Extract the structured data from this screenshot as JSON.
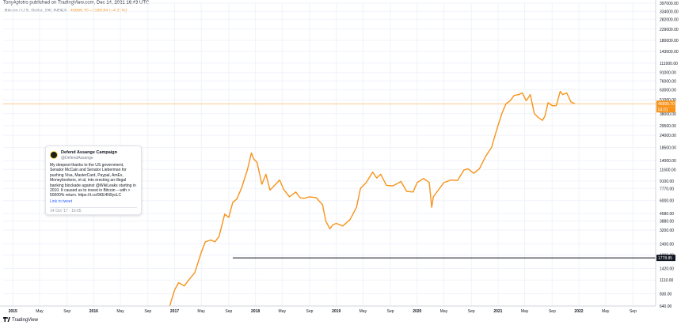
{
  "header": {
    "publisher_line": "TonyAplotro published on TradingView.com, Dec 14, 2021 16:43 UTC",
    "symbol": "Bitcoin / U.S. Dollar, 1W, INDEX",
    "ohlc_text": "46899.70 −2189.84 (−4.21%)"
  },
  "tweet": {
    "name": "Defend Assange Campaign",
    "handle": "@DefendAssange",
    "text": "My deepest thanks to the US government, Senator McCain and Senator Lieberman for pushing Visa, MasterCard, Paypal, AmEx, Moneybookers, et al, into erecting an illegal banking blockade against @WikiLeaks starting in 2010. It caused us to invest in Bitcoin – with > 50000% return. https://t.co/9KE4N9ysLC",
    "link_label": "Link to tweet",
    "date": "14 Oct '17 · 16:05"
  },
  "footer": {
    "logo_text": "TradingView"
  },
  "colors": {
    "series": "#f7931a",
    "level_line": "#131722",
    "grid": "#f0f3fa",
    "axis_text": "#131722",
    "price_tag_bg": "#f7931a",
    "level_tag_bg": "#131722"
  },
  "chart_data": {
    "type": "line",
    "scale": "log",
    "grid": true,
    "ylim": [
      640,
      397000
    ],
    "y_ticks": [
      640,
      830,
      1110,
      1420,
      1890,
      2400,
      3200,
      3880,
      4580,
      6000,
      7770,
      9100,
      11600,
      14000,
      18500,
      24000,
      29500,
      38000,
      51000,
      63000,
      76000,
      91000,
      111000,
      143000,
      180000,
      229000,
      282000,
      334000,
      397000
    ],
    "y_tick_labels": [
      "640.00",
      "830.00",
      "1110.00",
      "1420.00",
      "1890.00",
      "2400.00",
      "3200.00",
      "3880.00",
      "4580.00",
      "6000.00",
      "7770.00",
      "9100.00",
      "11600.00",
      "14000.00",
      "18500.00",
      "24000.00",
      "29500.00",
      "38000.00",
      "51000.00",
      "63000.00",
      "76000.00",
      "91000.00",
      "111000.00",
      "143000.00",
      "180000.00",
      "229000.00",
      "282000.00",
      "334000.00",
      "397000.00"
    ],
    "x_labels": [
      {
        "t": 2015.0,
        "label": "2015"
      },
      {
        "t": 2015.33,
        "label": "May"
      },
      {
        "t": 2015.67,
        "label": "Sep"
      },
      {
        "t": 2016.0,
        "label": "2016"
      },
      {
        "t": 2016.33,
        "label": "May"
      },
      {
        "t": 2016.67,
        "label": "Sep"
      },
      {
        "t": 2017.0,
        "label": "2017"
      },
      {
        "t": 2017.33,
        "label": "May"
      },
      {
        "t": 2017.67,
        "label": "Sep"
      },
      {
        "t": 2018.0,
        "label": "2018"
      },
      {
        "t": 2018.33,
        "label": "May"
      },
      {
        "t": 2018.67,
        "label": "Sep"
      },
      {
        "t": 2019.0,
        "label": "2019"
      },
      {
        "t": 2019.33,
        "label": "May"
      },
      {
        "t": 2019.67,
        "label": "Sep"
      },
      {
        "t": 2020.0,
        "label": "2020"
      },
      {
        "t": 2020.33,
        "label": "May"
      },
      {
        "t": 2020.67,
        "label": "Sep"
      },
      {
        "t": 2021.0,
        "label": "2021"
      },
      {
        "t": 2021.33,
        "label": "May"
      },
      {
        "t": 2021.67,
        "label": "Sep"
      },
      {
        "t": 2022.0,
        "label": "2022"
      },
      {
        "t": 2022.33,
        "label": "May"
      },
      {
        "t": 2022.67,
        "label": "Sep"
      }
    ],
    "series": [
      {
        "x": [
          2016.94,
          2017.0,
          2017.05,
          2017.12,
          2017.17,
          2017.25,
          2017.33,
          2017.38,
          2017.45,
          2017.5,
          2017.55,
          2017.62,
          2017.67,
          2017.72,
          2017.77,
          2017.83,
          2017.9,
          2017.95,
          2017.98,
          2018.02,
          2018.08,
          2018.13,
          2018.18,
          2018.25,
          2018.3,
          2018.35,
          2018.42,
          2018.5,
          2018.55,
          2018.6,
          2018.67,
          2018.75,
          2018.83,
          2018.87,
          2018.92,
          2018.96,
          2019.0,
          2019.08,
          2019.17,
          2019.25,
          2019.3,
          2019.37,
          2019.45,
          2019.5,
          2019.55,
          2019.62,
          2019.7,
          2019.8,
          2019.87,
          2019.95,
          2020.0,
          2020.08,
          2020.15,
          2020.18,
          2020.2,
          2020.25,
          2020.33,
          2020.42,
          2020.5,
          2020.58,
          2020.63,
          2020.7,
          2020.77,
          2020.85,
          2020.92,
          2020.96,
          2021.0,
          2021.05,
          2021.1,
          2021.15,
          2021.2,
          2021.26,
          2021.3,
          2021.35,
          2021.4,
          2021.45,
          2021.5,
          2021.55,
          2021.58,
          2021.62,
          2021.67,
          2021.72,
          2021.77,
          2021.8,
          2021.85,
          2021.9,
          2021.95
        ],
        "y": [
          640,
          900,
          1050,
          980,
          1100,
          1300,
          2000,
          2500,
          2600,
          2500,
          2800,
          4500,
          4200,
          5800,
          6200,
          7900,
          11500,
          16500,
          14500,
          13500,
          8500,
          10500,
          7500,
          8500,
          9300,
          7600,
          6500,
          7200,
          6400,
          6300,
          6500,
          6400,
          5500,
          3900,
          3300,
          3600,
          3700,
          3500,
          4000,
          5200,
          7800,
          8800,
          11000,
          9700,
          10500,
          8300,
          8200,
          9000,
          7300,
          7200,
          8800,
          9600,
          8800,
          5200,
          6500,
          7300,
          8800,
          9300,
          9200,
          11500,
          11800,
          10700,
          11800,
          15500,
          18500,
          23500,
          29500,
          38500,
          47000,
          50000,
          56000,
          57000,
          59000,
          50000,
          57000,
          38000,
          35000,
          33000,
          36000,
          48000,
          45000,
          45000,
          61000,
          57000,
          59000,
          49000,
          46900
        ]
      }
    ],
    "annotations": {
      "horizontal_level": 1778.85,
      "horizontal_level_label": "1778.85",
      "last_price_label": "46899.70",
      "countdown_label": "04:01"
    }
  }
}
